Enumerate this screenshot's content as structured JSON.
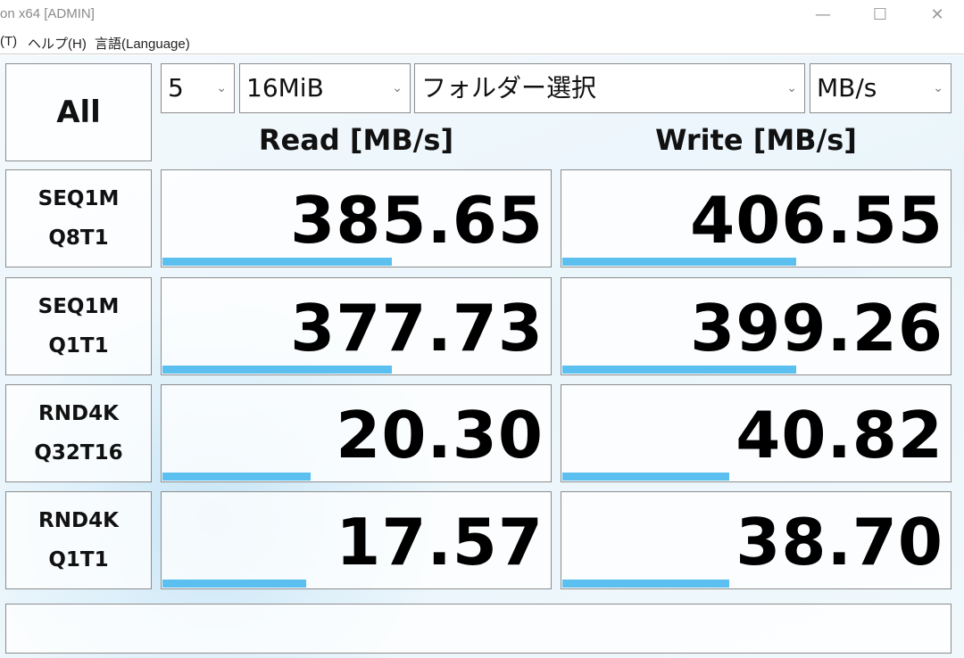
{
  "window": {
    "title": "on x64 [ADMIN]"
  },
  "menu": [
    "(T)",
    "ヘルプ(H)",
    "言語(Language)"
  ],
  "toolbar": {
    "all_label": "All",
    "count": "5",
    "size": "16MiB",
    "folder": "フォルダー選択",
    "unit": "MB/s"
  },
  "headers": {
    "read": "Read [MB/s]",
    "write": "Write [MB/s]"
  },
  "rows": [
    {
      "line1": "SEQ1M",
      "line2": "Q8T1",
      "read": "385.65",
      "write": "406.55",
      "read_bar": 0.59,
      "write_bar": 0.6
    },
    {
      "line1": "SEQ1M",
      "line2": "Q1T1",
      "read": "377.73",
      "write": "399.26",
      "read_bar": 0.59,
      "write_bar": 0.6
    },
    {
      "line1": "RND4K",
      "line2": "Q32T16",
      "read": "20.30",
      "write": "40.82",
      "read_bar": 0.38,
      "write_bar": 0.43
    },
    {
      "line1": "RND4K",
      "line2": "Q1T1",
      "read": "17.57",
      "write": "38.70",
      "read_bar": 0.37,
      "write_bar": 0.43
    }
  ],
  "colors": {
    "bar": "#5bbff0"
  },
  "comment": ""
}
